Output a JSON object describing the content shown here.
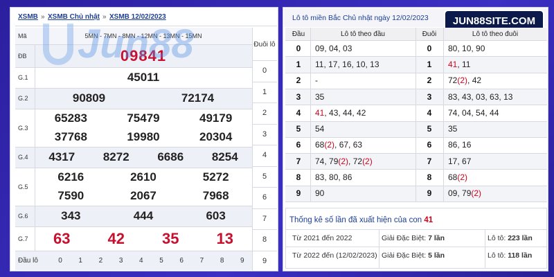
{
  "breadcrumb": {
    "items": [
      "XSMB",
      "XSMB Chủ nhật",
      "XSMB 12/02/2023"
    ],
    "separator": "»"
  },
  "watermark": "Jun88",
  "badge": "JUN88SITE.COM",
  "results": {
    "code_label": "Mã",
    "header": "5MN - 7MN - 8MN - 12MN - 13MN - 15MN",
    "tail_header": "Đuôi lô",
    "prizes": [
      {
        "label": "ĐB",
        "numbers": [
          "09841"
        ],
        "color": "#c8102e"
      },
      {
        "label": "G.1",
        "numbers": [
          "45011"
        ],
        "color": "#222222"
      },
      {
        "label": "G.2",
        "numbers": [
          "90809",
          "72174"
        ],
        "color": "#222222"
      },
      {
        "label": "G.3",
        "numbers": [
          "65283",
          "75479",
          "49179",
          "37768",
          "19980",
          "20304"
        ],
        "color": "#222222"
      },
      {
        "label": "G.4",
        "numbers": [
          "4317",
          "8272",
          "6686",
          "8254"
        ],
        "color": "#222222"
      },
      {
        "label": "G.5",
        "numbers": [
          "6216",
          "2610",
          "5272",
          "7590",
          "2067",
          "7968"
        ],
        "color": "#222222"
      },
      {
        "label": "G.6",
        "numbers": [
          "343",
          "444",
          "603"
        ],
        "color": "#222222"
      },
      {
        "label": "G.7",
        "numbers": [
          "63",
          "42",
          "35",
          "13"
        ],
        "color": "#c8102e"
      }
    ],
    "tails": [
      0,
      1,
      2,
      3,
      4,
      5,
      6,
      7,
      8,
      9
    ],
    "footer_label": "Đầu lô",
    "heads": [
      0,
      1,
      2,
      3,
      4,
      5,
      6,
      7,
      8,
      9
    ]
  },
  "loto": {
    "title": "Lô tô miền Bắc Chủ nhật ngày 12/02/2023",
    "headers": [
      "Đầu",
      "Lô tô theo đầu",
      "Đuôi",
      "Lô tô theo đuôi"
    ],
    "rows": [
      {
        "head": 0,
        "by_head": [
          {
            "text": "09, 04, 03"
          }
        ],
        "tail": 0,
        "by_tail": [
          {
            "text": "80, 10, 90"
          }
        ]
      },
      {
        "head": 1,
        "by_head": [
          {
            "text": "11, 17, 16, 10, 13"
          }
        ],
        "tail": 1,
        "by_tail": [
          {
            "text": "41",
            "color": "#d0021b"
          },
          {
            "text": ", 11"
          }
        ]
      },
      {
        "head": 2,
        "by_head": [
          {
            "text": "-"
          }
        ],
        "tail": 2,
        "by_tail": [
          {
            "text": "72"
          },
          {
            "text": "(2)",
            "color": "#d0021b"
          },
          {
            "text": ", 42"
          }
        ]
      },
      {
        "head": 3,
        "by_head": [
          {
            "text": "35"
          }
        ],
        "tail": 3,
        "by_tail": [
          {
            "text": "83, 43, 03, 63, 13"
          }
        ]
      },
      {
        "head": 4,
        "by_head": [
          {
            "text": "41",
            "color": "#d0021b"
          },
          {
            "text": ", 43, 44, 42"
          }
        ],
        "tail": 4,
        "by_tail": [
          {
            "text": "74, 04, 54, 44"
          }
        ]
      },
      {
        "head": 5,
        "by_head": [
          {
            "text": "54"
          }
        ],
        "tail": 5,
        "by_tail": [
          {
            "text": "35"
          }
        ]
      },
      {
        "head": 6,
        "by_head": [
          {
            "text": "68"
          },
          {
            "text": "(2)",
            "color": "#d0021b"
          },
          {
            "text": ", 67, 63"
          }
        ],
        "tail": 6,
        "by_tail": [
          {
            "text": "86, 16"
          }
        ]
      },
      {
        "head": 7,
        "by_head": [
          {
            "text": "74, 79"
          },
          {
            "text": "(2)",
            "color": "#d0021b"
          },
          {
            "text": ", 72"
          },
          {
            "text": "(2)",
            "color": "#d0021b"
          }
        ],
        "tail": 7,
        "by_tail": [
          {
            "text": "17, 67"
          }
        ]
      },
      {
        "head": 8,
        "by_head": [
          {
            "text": "83, 80, 86"
          }
        ],
        "tail": 8,
        "by_tail": [
          {
            "text": "68"
          },
          {
            "text": "(2)",
            "color": "#d0021b"
          }
        ]
      },
      {
        "head": 9,
        "by_head": [
          {
            "text": "90"
          }
        ],
        "tail": 9,
        "by_tail": [
          {
            "text": "09, 79"
          },
          {
            "text": "(2)",
            "color": "#d0021b"
          }
        ]
      }
    ]
  },
  "stats": {
    "title": [
      {
        "text": "Thống kê số lần đã xuất hiện của con "
      },
      {
        "text": "41",
        "color": "#d0021b",
        "bold": true
      }
    ],
    "rows": [
      [
        [
          {
            "text": "Từ 2021 đến 2022"
          }
        ],
        [
          {
            "text": "Giải Đặc Biệt: "
          },
          {
            "text": "7 lần",
            "bold": true
          }
        ],
        [
          {
            "text": "Lô tô: "
          },
          {
            "text": "223 lần",
            "bold": true
          }
        ]
      ],
      [
        [
          {
            "text": "Từ 2022 đến (12/02/2023)"
          }
        ],
        [
          {
            "text": "Giải Đặc Biệt: "
          },
          {
            "text": "5 lần",
            "bold": true
          }
        ],
        [
          {
            "text": "Lô tô: "
          },
          {
            "text": "118 lần",
            "bold": true
          }
        ]
      ]
    ]
  }
}
